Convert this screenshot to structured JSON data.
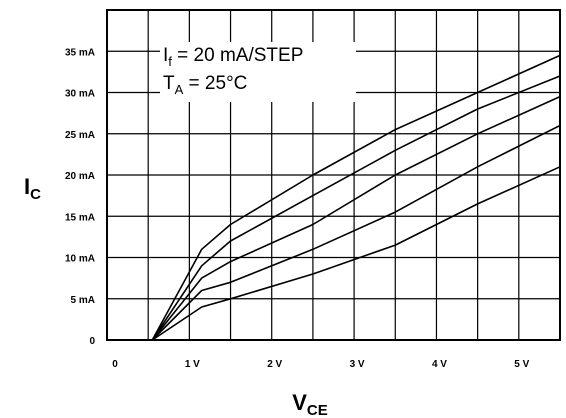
{
  "chart_data": {
    "type": "line",
    "xlabel_main": "V",
    "xlabel_sub": "CE",
    "ylabel_main": "I",
    "ylabel_sub": "C",
    "xlim": [
      0,
      5.5
    ],
    "ylim": [
      0,
      40
    ],
    "grid": true,
    "x_ticks": [
      0,
      1,
      2,
      3,
      4,
      5
    ],
    "x_tick_labels": [
      "0",
      "1 V",
      "2 V",
      "3 V",
      "4 V",
      "5 V"
    ],
    "y_ticks": [
      0,
      5,
      10,
      15,
      20,
      25,
      30,
      35
    ],
    "y_tick_labels": [
      "0",
      "5 mA",
      "10 mA",
      "15 mA",
      "20 mA",
      "25 mA",
      "30 mA",
      "35 mA"
    ],
    "annotation": {
      "line1_main": "I",
      "line1_sub": "f",
      "line1_rest": " = 20 mA/STEP",
      "line2_main": "T",
      "line2_sub": "A",
      "line2_rest": " = 25°C"
    },
    "series": [
      {
        "x": [
          0.55,
          1.15,
          1.5,
          2.5,
          3.5,
          4.5,
          5.5
        ],
        "y": [
          0,
          11,
          14,
          20,
          25.5,
          30,
          34.5
        ]
      },
      {
        "x": [
          0.55,
          1.15,
          1.5,
          2.5,
          3.5,
          4.5,
          5.5
        ],
        "y": [
          0,
          9,
          12,
          17.5,
          23,
          28,
          32
        ]
      },
      {
        "x": [
          0.55,
          1.15,
          1.5,
          2.5,
          3.5,
          4.5,
          5.5
        ],
        "y": [
          0,
          7.5,
          9.5,
          14,
          20,
          25,
          29.5
        ]
      },
      {
        "x": [
          0.55,
          1.15,
          1.5,
          2.5,
          3.5,
          4.5,
          5.5
        ],
        "y": [
          0,
          6,
          7,
          11,
          15.5,
          21,
          26
        ]
      },
      {
        "x": [
          0.55,
          1.15,
          1.5,
          2.5,
          3.5,
          4.5,
          5.5
        ],
        "y": [
          0,
          4,
          5,
          8,
          11.5,
          16.5,
          21
        ]
      }
    ]
  }
}
